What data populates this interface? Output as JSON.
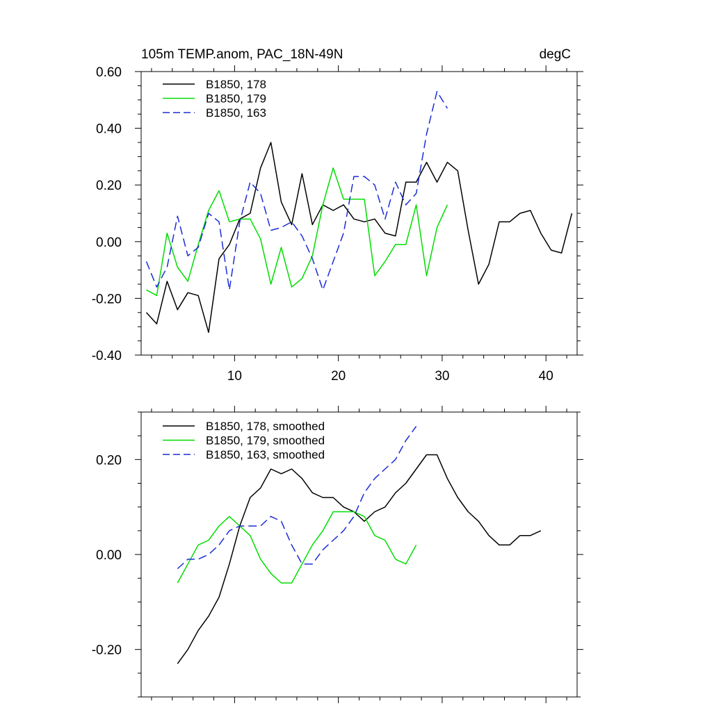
{
  "chart_data": [
    {
      "type": "line",
      "title": "105m TEMP.anom, PAC_18N-49N",
      "units": "degC",
      "xlim": [
        1,
        43
      ],
      "ylim": [
        -0.4,
        0.6
      ],
      "xticks": [
        10,
        20,
        30,
        40
      ],
      "xtick_labels": [
        "10",
        "20",
        "30",
        "40"
      ],
      "yticks": [
        -0.4,
        -0.2,
        0.0,
        0.2,
        0.4,
        0.6
      ],
      "ytick_labels": [
        "-0.40",
        "-0.20",
        "0.00",
        "0.20",
        "0.40",
        "0.60"
      ],
      "legend_position": "top-left",
      "series": [
        {
          "name": "B1850, 178",
          "color": "#000000",
          "dash": "solid",
          "x": [
            1.5,
            2.5,
            3.5,
            4.5,
            5.5,
            6.5,
            7.5,
            8.5,
            9.5,
            10.5,
            11.5,
            12.5,
            13.5,
            14.5,
            15.5,
            16.5,
            17.5,
            18.5,
            19.5,
            20.5,
            21.5,
            22.5,
            23.5,
            24.5,
            25.5,
            26.5,
            27.5,
            28.5,
            29.5,
            30.5,
            31.5,
            32.5,
            33.5,
            34.5,
            35.5,
            36.5,
            37.5,
            38.5,
            39.5,
            40.5,
            41.5,
            42.5
          ],
          "values": [
            -0.25,
            -0.29,
            -0.14,
            -0.24,
            -0.18,
            -0.19,
            -0.32,
            -0.06,
            -0.01,
            0.08,
            0.1,
            0.26,
            0.35,
            0.14,
            0.06,
            0.24,
            0.06,
            0.13,
            0.11,
            0.13,
            0.08,
            0.07,
            0.08,
            0.03,
            0.02,
            0.21,
            0.21,
            0.28,
            0.21,
            0.28,
            0.25,
            0.04,
            -0.15,
            -0.08,
            0.07,
            0.07,
            0.1,
            0.11,
            0.03,
            -0.03,
            -0.04,
            0.1
          ]
        },
        {
          "name": "B1850, 179",
          "color": "#00dd00",
          "dash": "solid",
          "x": [
            1.5,
            2.5,
            3.5,
            4.5,
            5.5,
            6.5,
            7.5,
            8.5,
            9.5,
            10.5,
            11.5,
            12.5,
            13.5,
            14.5,
            15.5,
            16.5,
            17.5,
            18.5,
            19.5,
            20.5,
            21.5,
            22.5,
            23.5,
            24.5,
            25.5,
            26.5,
            27.5,
            28.5,
            29.5,
            30.5
          ],
          "values": [
            -0.17,
            -0.19,
            0.03,
            -0.09,
            -0.14,
            -0.01,
            0.11,
            0.18,
            0.07,
            0.08,
            0.08,
            0.01,
            -0.15,
            -0.02,
            -0.16,
            -0.13,
            -0.05,
            0.13,
            0.26,
            0.15,
            0.15,
            0.15,
            -0.12,
            -0.07,
            -0.01,
            -0.01,
            0.13,
            -0.12,
            0.05,
            0.13
          ]
        },
        {
          "name": "B1850, 163",
          "color": "#1a2bd6",
          "dash": "dashed",
          "x": [
            1.5,
            2.5,
            3.5,
            4.5,
            5.5,
            6.5,
            7.5,
            8.5,
            9.5,
            10.5,
            11.5,
            12.5,
            13.5,
            14.5,
            15.5,
            16.5,
            17.5,
            18.5,
            19.5,
            20.5,
            21.5,
            22.5,
            23.5,
            24.5,
            25.5,
            26.5,
            27.5,
            28.5,
            29.5,
            30.5
          ],
          "values": [
            -0.07,
            -0.16,
            -0.09,
            0.09,
            -0.05,
            -0.02,
            0.1,
            0.07,
            -0.17,
            0.07,
            0.21,
            0.17,
            0.04,
            0.05,
            0.07,
            0.02,
            -0.06,
            -0.17,
            -0.07,
            0.03,
            0.23,
            0.23,
            0.2,
            0.08,
            0.21,
            0.13,
            0.17,
            0.38,
            0.53,
            0.47
          ]
        }
      ]
    },
    {
      "type": "line",
      "title": "",
      "xlim": [
        1,
        43
      ],
      "ylim": [
        -0.3,
        0.3
      ],
      "xticks": [
        10,
        20,
        30,
        40
      ],
      "xtick_labels": [],
      "yticks": [
        -0.2,
        0.0,
        0.2
      ],
      "ytick_labels": [
        "-0.20",
        "0.00",
        "0.20"
      ],
      "legend_position": "top-left",
      "series": [
        {
          "name": "B1850, 178, smoothed",
          "color": "#000000",
          "dash": "solid",
          "x": [
            4.5,
            5.5,
            6.5,
            7.5,
            8.5,
            9.5,
            10.5,
            11.5,
            12.5,
            13.5,
            14.5,
            15.5,
            16.5,
            17.5,
            18.5,
            19.5,
            20.5,
            21.5,
            22.5,
            23.5,
            24.5,
            25.5,
            26.5,
            27.5,
            28.5,
            29.5,
            30.5,
            31.5,
            32.5,
            33.5,
            34.5,
            35.5,
            36.5,
            37.5,
            38.5,
            39.5
          ],
          "values": [
            -0.23,
            -0.2,
            -0.16,
            -0.13,
            -0.09,
            -0.02,
            0.06,
            0.12,
            0.14,
            0.18,
            0.17,
            0.18,
            0.16,
            0.13,
            0.12,
            0.12,
            0.1,
            0.09,
            0.07,
            0.09,
            0.1,
            0.13,
            0.15,
            0.18,
            0.21,
            0.21,
            0.16,
            0.12,
            0.09,
            0.07,
            0.04,
            0.02,
            0.02,
            0.04,
            0.04,
            0.05
          ]
        },
        {
          "name": "B1850, 179, smoothed",
          "color": "#00dd00",
          "dash": "solid",
          "x": [
            4.5,
            5.5,
            6.5,
            7.5,
            8.5,
            9.5,
            10.5,
            11.5,
            12.5,
            13.5,
            14.5,
            15.5,
            16.5,
            17.5,
            18.5,
            19.5,
            20.5,
            21.5,
            22.5,
            23.5,
            24.5,
            25.5,
            26.5,
            27.5
          ],
          "values": [
            -0.06,
            -0.02,
            0.02,
            0.03,
            0.06,
            0.08,
            0.06,
            0.04,
            -0.01,
            -0.04,
            -0.06,
            -0.06,
            -0.02,
            0.02,
            0.05,
            0.09,
            0.09,
            0.09,
            0.08,
            0.04,
            0.03,
            -0.01,
            -0.02,
            0.02
          ]
        },
        {
          "name": "B1850, 163, smoothed",
          "color": "#1a2bd6",
          "dash": "dashed",
          "x": [
            4.5,
            5.5,
            6.5,
            7.5,
            8.5,
            9.5,
            10.5,
            11.5,
            12.5,
            13.5,
            14.5,
            15.5,
            16.5,
            17.5,
            18.5,
            19.5,
            20.5,
            21.5,
            22.5,
            23.5,
            24.5,
            25.5,
            26.5,
            27.5
          ],
          "values": [
            -0.03,
            -0.01,
            -0.01,
            0.0,
            0.02,
            0.05,
            0.06,
            0.06,
            0.06,
            0.08,
            0.07,
            0.02,
            -0.02,
            -0.02,
            0.01,
            0.03,
            0.05,
            0.08,
            0.13,
            0.16,
            0.18,
            0.2,
            0.24,
            0.27
          ]
        }
      ]
    }
  ]
}
